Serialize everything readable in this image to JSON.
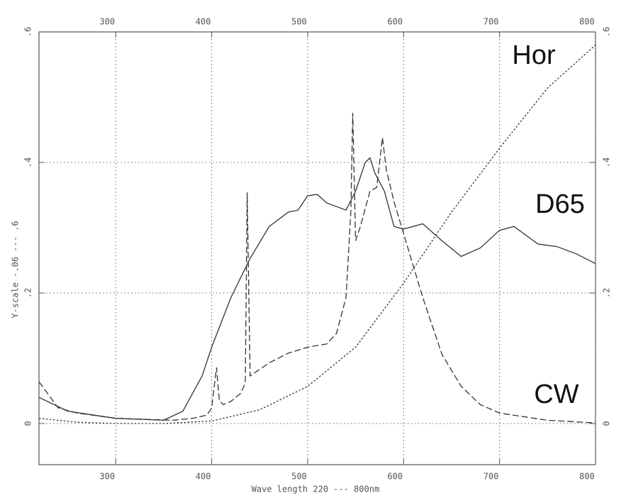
{
  "chart_data": {
    "type": "line",
    "x_label": "Wave length  220 --- 800nm",
    "y_label": "Y-scale  -.06 --- .6",
    "xlim": [
      220,
      800
    ],
    "ylim": [
      -0.063,
      0.6
    ],
    "xticks": [
      300,
      400,
      500,
      600,
      700,
      800
    ],
    "yticks": [
      0,
      {
        "value": 0.2,
        "label": ".2"
      },
      {
        "value": 0.4,
        "label": ".4"
      },
      {
        "value": 0.6,
        "label": ".6"
      }
    ],
    "grid": true,
    "series": [
      {
        "name": "D65",
        "color": "#333333",
        "style": "solid",
        "x": [
          220,
          250,
          300,
          350,
          370,
          390,
          400,
          420,
          440,
          460,
          480,
          490,
          500,
          510,
          520,
          540,
          550,
          560,
          565,
          570,
          580,
          590,
          600,
          620,
          640,
          660,
          680,
          700,
          715,
          740,
          760,
          780,
          800
        ],
        "values": [
          0.04,
          0.019,
          0.008,
          0.005,
          0.019,
          0.073,
          0.117,
          0.193,
          0.253,
          0.302,
          0.324,
          0.327,
          0.349,
          0.351,
          0.338,
          0.327,
          0.356,
          0.4,
          0.407,
          0.384,
          0.356,
          0.302,
          0.298,
          0.306,
          0.28,
          0.256,
          0.269,
          0.296,
          0.302,
          0.275,
          0.271,
          0.26,
          0.245
        ]
      },
      {
        "name": "CW",
        "color": "#333333",
        "style": "dashed",
        "x": [
          220,
          240,
          260,
          300,
          360,
          380,
          395,
          400,
          405,
          408,
          412,
          420,
          430,
          435,
          437,
          440,
          445,
          460,
          480,
          500,
          520,
          530,
          540,
          545,
          547,
          550,
          555,
          565,
          572,
          578,
          582,
          590,
          600,
          620,
          640,
          660,
          680,
          700,
          750,
          800
        ],
        "values": [
          0.064,
          0.024,
          0.016,
          0.008,
          0.005,
          0.008,
          0.013,
          0.024,
          0.086,
          0.035,
          0.029,
          0.034,
          0.046,
          0.062,
          0.354,
          0.073,
          0.078,
          0.093,
          0.108,
          0.117,
          0.122,
          0.138,
          0.193,
          0.324,
          0.476,
          0.28,
          0.302,
          0.356,
          0.362,
          0.438,
          0.389,
          0.34,
          0.291,
          0.193,
          0.106,
          0.057,
          0.029,
          0.016,
          0.005,
          0.001
        ]
      },
      {
        "name": "Hor",
        "color": "#333333",
        "style": "dotted",
        "x": [
          220,
          260,
          300,
          350,
          400,
          450,
          500,
          550,
          600,
          650,
          700,
          750,
          800
        ],
        "values": [
          0.008,
          0.002,
          0,
          0,
          0.004,
          0.021,
          0.057,
          0.117,
          0.215,
          0.324,
          0.422,
          0.514,
          0.58
        ]
      }
    ]
  }
}
